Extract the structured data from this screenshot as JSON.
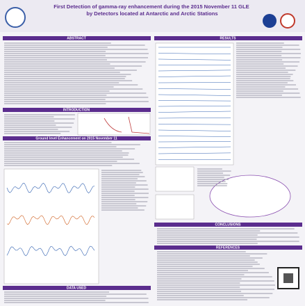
{
  "header": {
    "title": "First Detection of gamma-ray enhancement during the 2015 November 11 GLE by Detectors located at Antarctic and Arctic Stations"
  },
  "sections": {
    "abstract": "ABSTRACT",
    "introduction": "INTRODUCTION",
    "gle": "Ground level Enhancement on 2015 November 11",
    "data": "DATA USED",
    "results": "RESULTS",
    "conclusions": "CONCLUSIONS",
    "references": "REFERENCES"
  }
}
